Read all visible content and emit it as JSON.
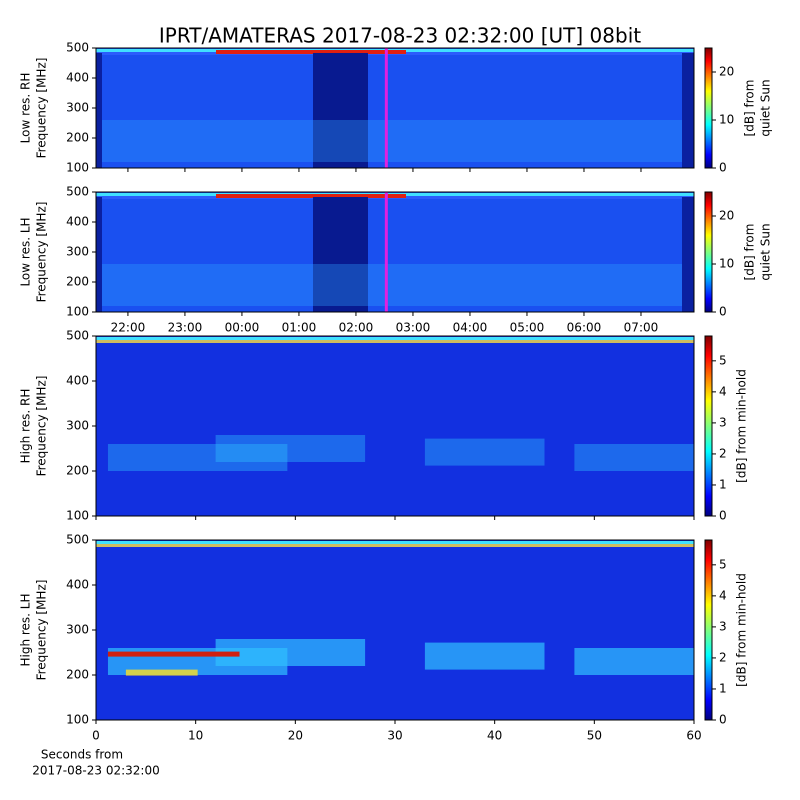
{
  "title": "IPRT/AMATERAS 2017-08-23 02:32:00 [UT]   08bit",
  "xcaption": [
    "Seconds from",
    "2017-08-23 02:32:00"
  ],
  "chart_data": [
    {
      "type": "heatmap",
      "ylabel": [
        "Low res. RH",
        "Frequency [MHz]"
      ],
      "ylim": [
        100,
        500
      ],
      "yticks": [
        100,
        200,
        300,
        400,
        500
      ],
      "xlim": [
        21.44,
        31.93
      ],
      "marker": 26.533,
      "marker_color": "#e020e0",
      "colorbar_label": [
        "[dB] from",
        "quiet Sun"
      ],
      "clim": [
        0,
        25
      ],
      "cticks": [
        0,
        10,
        20
      ]
    },
    {
      "type": "heatmap",
      "ylabel": [
        "Low res. LH",
        "Frequency [MHz]"
      ],
      "ylim": [
        100,
        500
      ],
      "yticks": [
        100,
        200,
        300,
        400,
        500
      ],
      "xlim": [
        21.44,
        31.93
      ],
      "xticks": [
        {
          "value": 22,
          "label": "22:00"
        },
        {
          "value": 23,
          "label": "23:00"
        },
        {
          "value": 24,
          "label": "00:00"
        },
        {
          "value": 25,
          "label": "01:00"
        },
        {
          "value": 26,
          "label": "02:00"
        },
        {
          "value": 27,
          "label": "03:00"
        },
        {
          "value": 28,
          "label": "04:00"
        },
        {
          "value": 29,
          "label": "05:00"
        },
        {
          "value": 30,
          "label": "06:00"
        },
        {
          "value": 31,
          "label": "07:00"
        }
      ],
      "marker": 26.533,
      "marker_color": "#e020e0",
      "colorbar_label": [
        "[dB] from",
        "quiet Sun"
      ],
      "clim": [
        0,
        25
      ],
      "cticks": [
        0,
        10,
        20
      ]
    },
    {
      "type": "heatmap",
      "ylabel": [
        "High res. RH",
        "Frequency [MHz]"
      ],
      "ylim": [
        100,
        500
      ],
      "yticks": [
        100,
        200,
        300,
        400,
        500
      ],
      "xlim": [
        0,
        60
      ],
      "colorbar_label": [
        "[dB] from min-hold"
      ],
      "clim": [
        0,
        5.8
      ],
      "cticks": [
        0,
        1,
        2,
        3,
        4,
        5
      ]
    },
    {
      "type": "heatmap",
      "ylabel": [
        "High res. LH",
        "Frequency [MHz]"
      ],
      "ylim": [
        100,
        500
      ],
      "yticks": [
        100,
        200,
        300,
        400,
        500
      ],
      "xlim": [
        0,
        60
      ],
      "xticks": [
        0,
        10,
        20,
        30,
        40,
        50,
        60
      ],
      "colorbar_label": [
        "[dB] from min-hold"
      ],
      "clim": [
        0,
        5.8
      ],
      "cticks": [
        0,
        1,
        2,
        3,
        4,
        5
      ]
    }
  ]
}
